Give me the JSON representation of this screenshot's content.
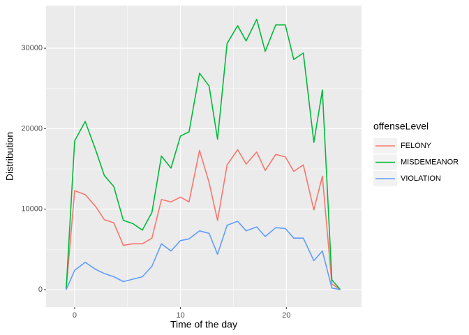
{
  "chart_data": {
    "type": "line",
    "xlabel": "Time of the day",
    "ylabel": "Distribution",
    "legend_title": "offenseLevel",
    "x": [
      -0.8,
      0,
      1.0,
      2.0,
      2.8,
      3.7,
      4.6,
      5.5,
      6.4,
      7.3,
      8.2,
      9.1,
      10,
      10.8,
      11.8,
      12.7,
      13.5,
      14.4,
      15.4,
      16.2,
      17.2,
      18.0,
      19.0,
      19.9,
      20.7,
      21.6,
      22.6,
      23.4,
      24.3,
      25.1
    ],
    "series": [
      {
        "name": "FELONY",
        "color": "#f8766d",
        "values": [
          0,
          12300,
          11800,
          10300,
          8700,
          8300,
          5500,
          5700,
          5700,
          6400,
          11200,
          10900,
          11500,
          10900,
          17300,
          13300,
          8600,
          15500,
          17400,
          15600,
          17100,
          14800,
          16800,
          16500,
          14700,
          15500,
          9900,
          14100,
          700,
          0
        ]
      },
      {
        "name": "MISDEMEANOR",
        "color": "#00ba38",
        "values": [
          0,
          18500,
          20900,
          17300,
          14200,
          12800,
          8600,
          8200,
          7400,
          9600,
          16600,
          15100,
          19100,
          19600,
          26900,
          25300,
          18700,
          30600,
          32800,
          30900,
          33600,
          29600,
          32900,
          32900,
          28600,
          29400,
          18300,
          24800,
          1200,
          0
        ]
      },
      {
        "name": "VIOLATION",
        "color": "#619cff",
        "values": [
          0,
          2400,
          3400,
          2500,
          2000,
          1600,
          1000,
          1300,
          1600,
          2900,
          5700,
          4800,
          6100,
          6300,
          7300,
          7000,
          4400,
          8000,
          8500,
          7300,
          7800,
          6600,
          7700,
          7600,
          6400,
          6400,
          3600,
          4800,
          200,
          0
        ]
      }
    ],
    "xlim": [
      -2.7,
      27.1
    ],
    "xticks": [
      0,
      10,
      20
    ],
    "ylim": [
      -2170,
      35300
    ],
    "yticks": [
      0,
      10000,
      20000,
      30000
    ],
    "grid": true,
    "legend": "right"
  }
}
